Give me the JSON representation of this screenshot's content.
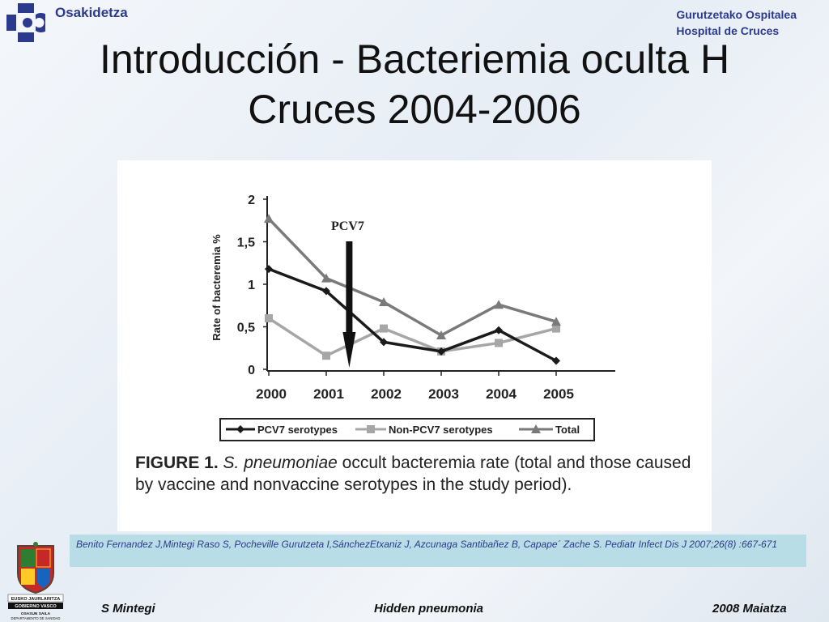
{
  "header": {
    "brand": "Osakidetza",
    "hospital_line1": "Gurutzetako Ospitalea",
    "hospital_line2": "Hospital de Cruces"
  },
  "slide_title_line1": "Introducción - Bacteriemia oculta H",
  "slide_title_line2": "Cruces 2004-2006",
  "chart_data": {
    "type": "line",
    "categories": [
      "2000",
      "2001",
      "2002",
      "2003",
      "2004",
      "2005"
    ],
    "ylabel": "Rate of bacteremia %",
    "yticks": [
      "0",
      "0,5",
      "1",
      "1,5",
      "2"
    ],
    "ylim": [
      0,
      2
    ],
    "grid": false,
    "legend_position": "bottom",
    "annotation": {
      "label": "PCV7",
      "x_value": 2001.4
    },
    "series": [
      {
        "name": "PCV7 serotypes",
        "values": [
          1.18,
          0.92,
          0.32,
          0.21,
          0.46,
          0.1
        ],
        "color": "#1a1a1a",
        "marker": "diamond"
      },
      {
        "name": "Non-PCV7 serotypes",
        "values": [
          0.6,
          0.16,
          0.48,
          0.21,
          0.31,
          0.48
        ],
        "color": "#a6a6a6",
        "marker": "square"
      },
      {
        "name": "Total",
        "values": [
          1.77,
          1.07,
          0.79,
          0.4,
          0.76,
          0.56
        ],
        "color": "#7a7a7a",
        "marker": "triangle"
      }
    ]
  },
  "caption": {
    "lead": "FIGURE 1.",
    "species": "S. pneumoniae",
    "text": " occult bacteremia rate (total and those caused by vaccine and nonvaccine serotypes in the study period)."
  },
  "citation": "Benito Fernandez J,Mintegi Raso S, Pocheville Gurutzeta I,SánchezEtxaniz J, Azcunaga Santibañez B, Capape´ Zache S. Pediatr Infect Dis J 2007;26(8) :667-671",
  "crest": {
    "line1": "EUSKO JAURLARITZA",
    "line2": "GOBIERNO VASCO",
    "line3": "OSASUN SAILA",
    "line4": "DEPARTAMENTO DE SANIDAD"
  },
  "footer": {
    "left": "S Mintegi",
    "center": "Hidden pneumonia",
    "right": "2008 Maiatza"
  },
  "colors": {
    "brand": "#2b3a8c",
    "citation_bg": "#b9dde6"
  }
}
